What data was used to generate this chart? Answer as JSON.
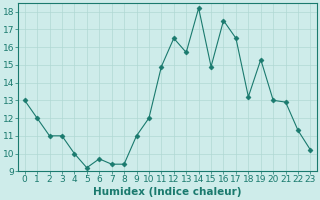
{
  "x": [
    0,
    1,
    2,
    3,
    4,
    5,
    6,
    7,
    8,
    9,
    10,
    11,
    12,
    13,
    14,
    15,
    16,
    17,
    18,
    19,
    20,
    21,
    22,
    23
  ],
  "y": [
    13,
    12,
    11,
    11,
    10,
    9.2,
    9.7,
    9.4,
    9.4,
    11,
    12,
    14.9,
    16.5,
    15.7,
    18.2,
    14.9,
    17.5,
    16.5,
    13.2,
    15.3,
    13,
    12.9,
    11.3,
    10.2
  ],
  "line_color": "#1a7a6e",
  "marker": "D",
  "marker_size": 2.5,
  "bg_color": "#ceecea",
  "grid_color": "#b0d8d4",
  "xlabel": "Humidex (Indice chaleur)",
  "xlabel_fontsize": 7.5,
  "tick_fontsize": 6.5,
  "ylim": [
    9,
    18.5
  ],
  "yticks": [
    9,
    10,
    11,
    12,
    13,
    14,
    15,
    16,
    17,
    18
  ],
  "xticks": [
    0,
    1,
    2,
    3,
    4,
    5,
    6,
    7,
    8,
    9,
    10,
    11,
    12,
    13,
    14,
    15,
    16,
    17,
    18,
    19,
    20,
    21,
    22,
    23
  ],
  "tick_color": "#1a7a6e",
  "axis_color": "#1a7a6e"
}
